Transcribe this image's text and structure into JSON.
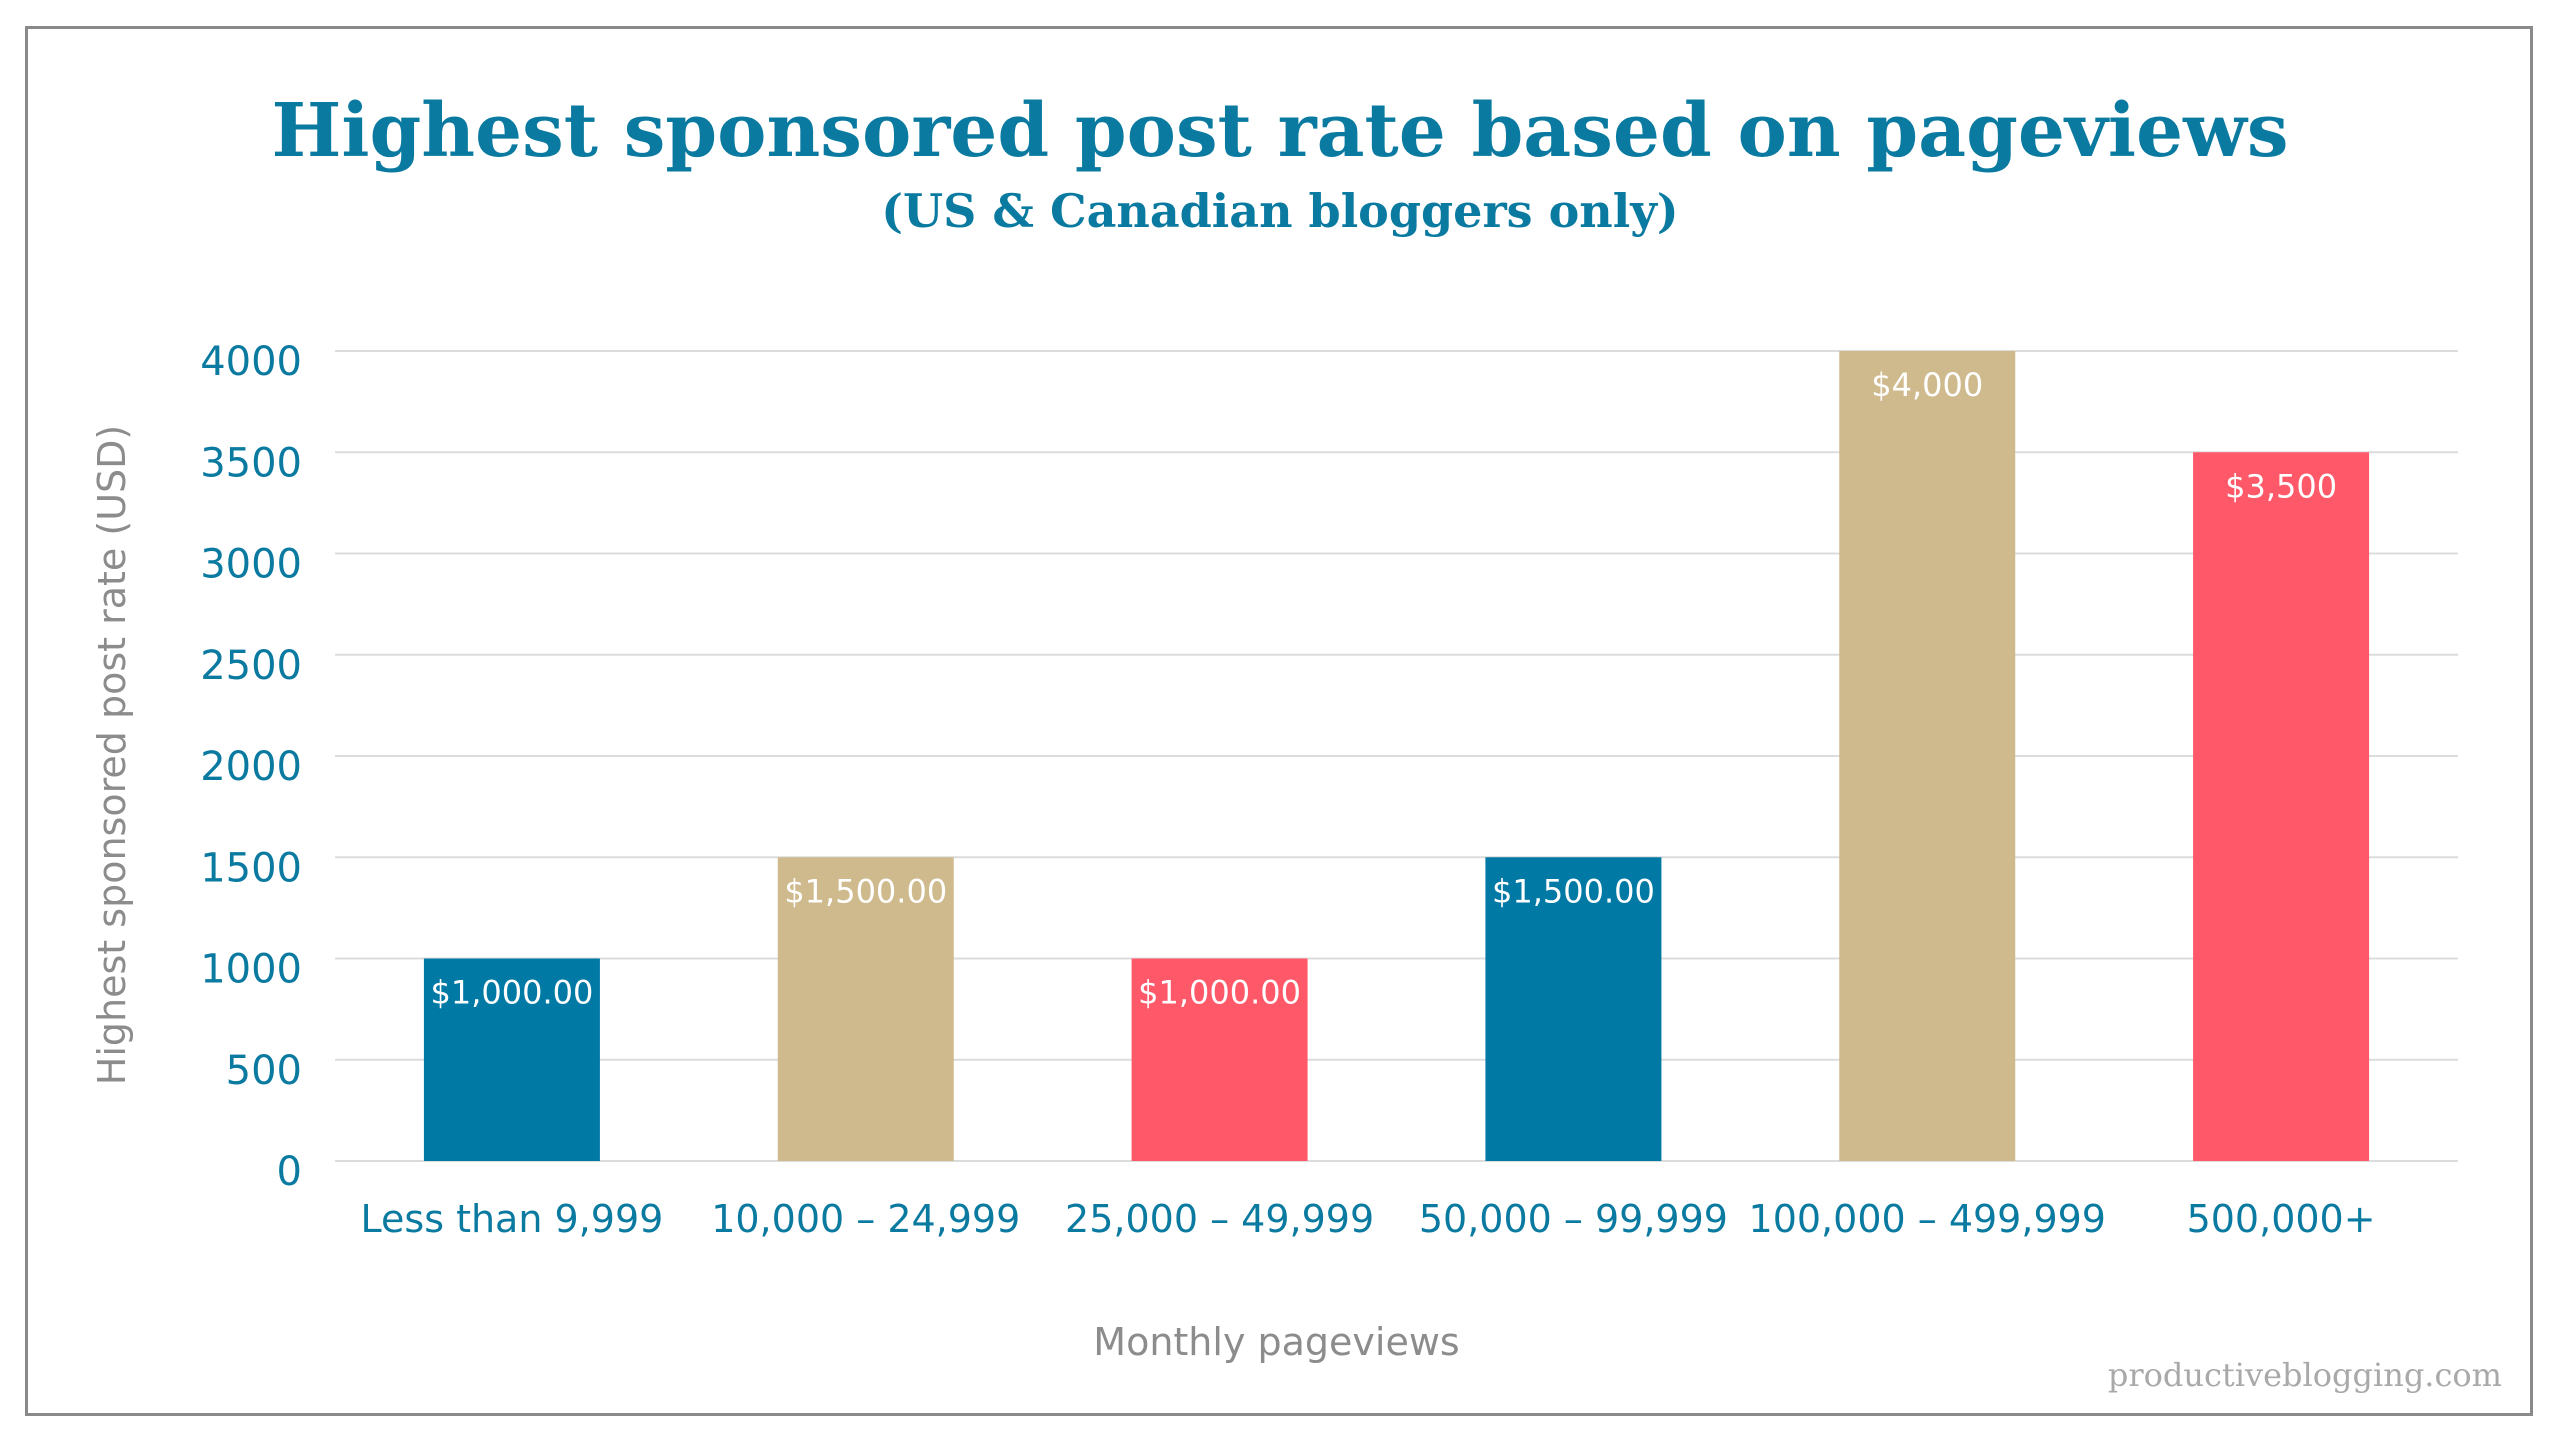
{
  "chart_data": {
    "type": "bar",
    "title": "Highest sponsored post rate based on pageviews",
    "subtitle": "(US & Canadian bloggers only)",
    "xlabel": "Monthly pageviews",
    "ylabel": "Highest sponsored post rate (USD)",
    "ylim": [
      0,
      4000
    ],
    "yticks": [
      0,
      500,
      1000,
      1500,
      2000,
      2500,
      3000,
      3500,
      4000
    ],
    "grid": true,
    "categories": [
      "Less than 9,999",
      "10,000 – 24,999",
      "25,000 – 49,999",
      "50,000 – 99,999",
      "100,000 – 499,999",
      "500,000+"
    ],
    "values": [
      1000,
      1500,
      1000,
      1500,
      4000,
      3500
    ],
    "data_labels": [
      "$1,000.00",
      "$1,500.00",
      "$1,000.00",
      "$1,500.00",
      "$4,000",
      "$3,500"
    ],
    "colors": [
      "#0079a5",
      "#cfba8e",
      "#ff5868",
      "#0079a5",
      "#cfba8e",
      "#ff5868"
    ],
    "axis_color": "#0a7aa0",
    "label_color": "#8c8c8c"
  },
  "watermark": "productiveblogging.com"
}
